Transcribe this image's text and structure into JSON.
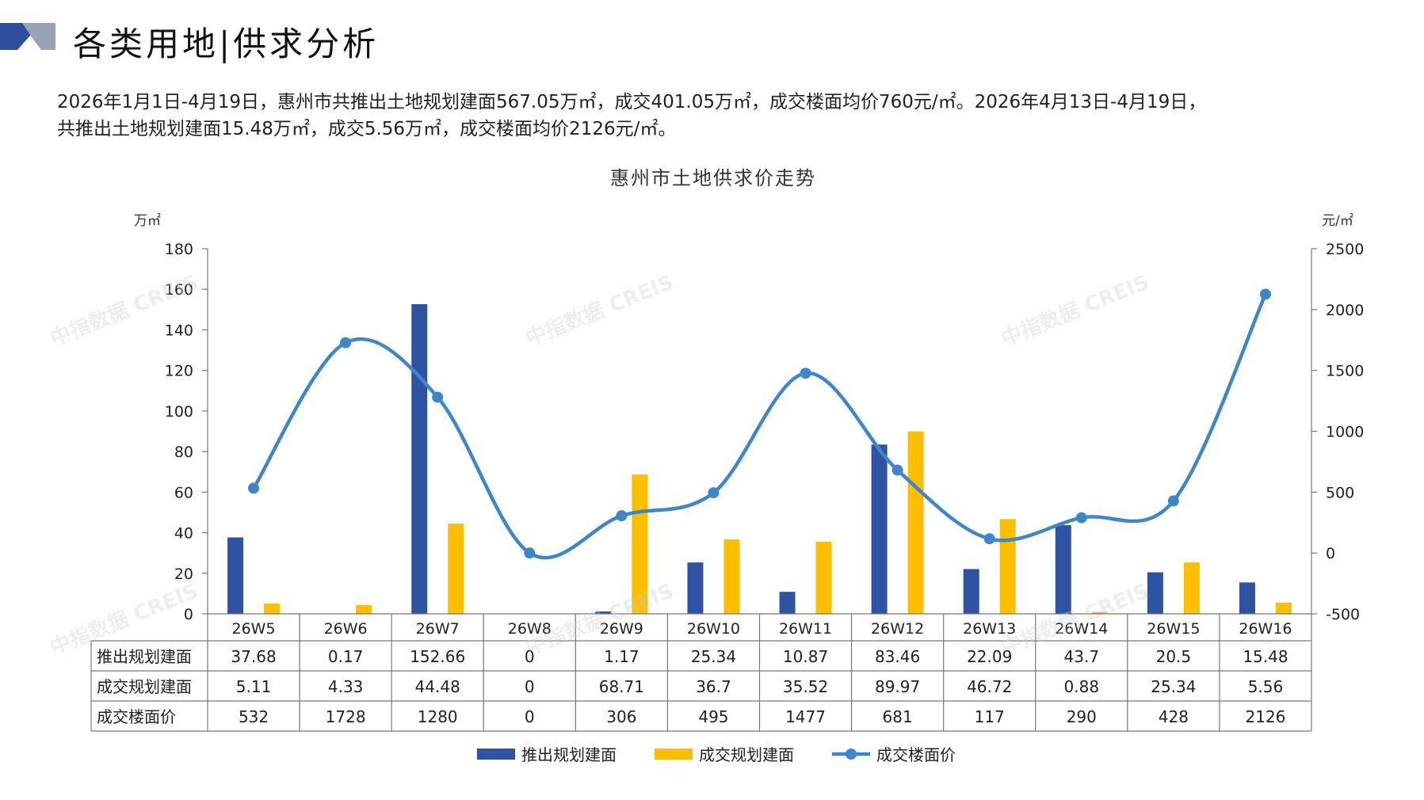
{
  "page": {
    "title": "各类用地|供求分析",
    "summary_line1": "2026年1月1日-4月19日，惠州市共推出土地规划建面567.05万㎡，成交401.05万㎡，成交楼面均价760元/㎡。2026年4月13日-4月19日，",
    "summary_line2": "共推出土地规划建面15.48万㎡，成交5.56万㎡，成交楼面均价2126元/㎡。",
    "watermark": "中指数据 CREIS"
  },
  "colors": {
    "logo_dark": "#2e4f9e",
    "logo_light": "#9aa3b5",
    "supply": "#2e54a1",
    "deal": "#fbbf00",
    "price": "#3f86c9"
  },
  "chart_data": {
    "type": "bar",
    "title": "惠州市土地供求价走势",
    "y_left_unit": "万㎡",
    "y_right_unit": "元/㎡",
    "y_left_range": [
      0,
      180
    ],
    "y_left_ticks": [
      "0",
      "20",
      "40",
      "60",
      "80",
      "100",
      "120",
      "140",
      "160",
      "180"
    ],
    "y_right_range": [
      -500,
      2500
    ],
    "y_right_ticks": [
      "-500",
      "0",
      "500",
      "1000",
      "1500",
      "2000",
      "2500"
    ],
    "categories": [
      "26W5",
      "26W6",
      "26W7",
      "26W8",
      "26W9",
      "26W10",
      "26W11",
      "26W12",
      "26W13",
      "26W14",
      "26W15",
      "26W16"
    ],
    "series": [
      {
        "name": "推出规划建面",
        "type": "bar",
        "axis": "left",
        "values": [
          37.68,
          0.17,
          152.66,
          0,
          1.17,
          25.34,
          10.87,
          83.46,
          22.09,
          43.7,
          20.5,
          15.48
        ],
        "labels": [
          "37.68",
          "0.17",
          "152.66",
          "0",
          "1.17",
          "25.34",
          "10.87",
          "83.46",
          "22.09",
          "43.7",
          "20.5",
          "15.48"
        ]
      },
      {
        "name": "成交规划建面",
        "type": "bar",
        "axis": "left",
        "values": [
          5.11,
          4.33,
          44.48,
          0,
          68.71,
          36.7,
          35.52,
          89.97,
          46.72,
          0.88,
          25.34,
          5.56
        ],
        "labels": [
          "5.11",
          "4.33",
          "44.48",
          "0",
          "68.71",
          "36.7",
          "35.52",
          "89.97",
          "46.72",
          "0.88",
          "25.34",
          "5.56"
        ]
      },
      {
        "name": "成交楼面价",
        "type": "line",
        "axis": "right",
        "values": [
          532,
          1728,
          1280,
          0,
          306,
          495,
          1477,
          681,
          117,
          290,
          428,
          2126
        ],
        "labels": [
          "532",
          "1728",
          "1280",
          "0",
          "306",
          "495",
          "1477",
          "681",
          "117",
          "290",
          "428",
          "2126"
        ]
      }
    ],
    "legend_position": "bottom",
    "grid": false
  }
}
